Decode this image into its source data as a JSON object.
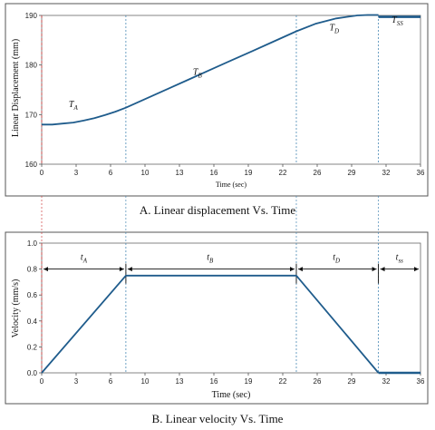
{
  "chart_data": [
    {
      "type": "line",
      "title": "",
      "caption": "A. Linear displacement Vs. Time",
      "xlabel": "Time (sec)",
      "ylabel": "Linear Displacement (mm)",
      "xlim": [
        0,
        36
      ],
      "ylim": [
        160,
        190
      ],
      "x_ticks": [
        "0",
        "3",
        "6",
        "10",
        "13",
        "16",
        "19",
        "22",
        "26",
        "29",
        "32",
        "36"
      ],
      "y_ticks": [
        "160",
        "170",
        "180",
        "190"
      ],
      "grid": false,
      "phase_boundaries": [
        8,
        24.2,
        32
      ],
      "phase_labels": [
        {
          "base": "T",
          "sub": "A",
          "x": 3,
          "y": 171.5
        },
        {
          "base": "T",
          "sub": "B",
          "x": 14.8,
          "y": 178
        },
        {
          "base": "T",
          "sub": "D",
          "x": 27.8,
          "y": 187
        },
        {
          "base": "T",
          "sub": "SS",
          "x": 33.8,
          "y": 188.5
        }
      ],
      "series": [
        {
          "color": "#1f5c8c",
          "x": [
            0,
            1,
            2,
            3,
            4,
            5,
            6,
            7,
            8,
            10,
            12,
            14,
            16,
            18,
            20,
            22,
            24.2,
            26,
            28,
            30,
            31,
            32
          ],
          "y": [
            168.0,
            168.0,
            168.2,
            168.4,
            168.8,
            169.3,
            169.9,
            170.6,
            171.4,
            173.3,
            175.2,
            177.1,
            179.0,
            180.9,
            182.8,
            184.7,
            186.8,
            188.3,
            189.4,
            190.0,
            190.1,
            190.1
          ]
        },
        {
          "color": "#1f5c8c",
          "style": "hold",
          "x": [
            32,
            36
          ],
          "y": [
            189.7,
            189.7
          ]
        }
      ]
    },
    {
      "type": "line",
      "title": "",
      "caption": "B. Linear velocity Vs. Time",
      "xlabel": "Time (sec)",
      "ylabel": "Velocity (mm/s)",
      "xlim": [
        0,
        36
      ],
      "ylim": [
        0,
        1.0
      ],
      "x_ticks": [
        "0",
        "3",
        "6",
        "10",
        "13",
        "16",
        "19",
        "22",
        "26",
        "29",
        "32",
        "36"
      ],
      "y_ticks": [
        "0.0",
        "0.2",
        "0.4",
        "0.6",
        "0.8",
        "1.0"
      ],
      "grid": false,
      "phase_boundaries": [
        8,
        24.2,
        32
      ],
      "phase_labels": [
        {
          "base": "t",
          "sub": "A",
          "x": 4,
          "y": 0.87
        },
        {
          "base": "t",
          "sub": "B",
          "x": 16,
          "y": 0.87
        },
        {
          "base": "t",
          "sub": "D",
          "x": 28,
          "y": 0.87
        },
        {
          "base": "t",
          "sub": "ss",
          "x": 34,
          "y": 0.87
        }
      ],
      "arrow_y": 0.8,
      "series": [
        {
          "color": "#1f5c8c",
          "x": [
            0,
            8,
            24.2,
            32
          ],
          "y": [
            0,
            0.75,
            0.75,
            0
          ]
        },
        {
          "color": "#1f5c8c",
          "style": "hold",
          "x": [
            32,
            36
          ],
          "y": [
            0,
            0
          ]
        }
      ]
    }
  ]
}
